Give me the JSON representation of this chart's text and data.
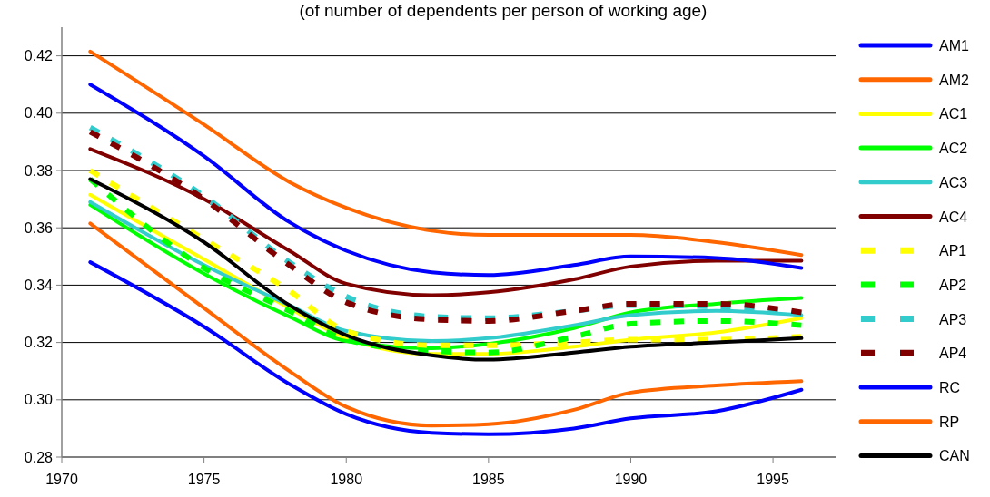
{
  "chart_data": {
    "type": "line",
    "subtitle": "(of number of dependents per person of working age)",
    "xlim": [
      1970,
      1997.2
    ],
    "xticks": [
      1970,
      1975,
      1980,
      1985,
      1990,
      1995
    ],
    "ylim": [
      0.28,
      0.43
    ],
    "yticks": [
      {
        "value": 0.28,
        "label": "0.28"
      },
      {
        "value": 0.3,
        "label": "0.30"
      },
      {
        "value": 0.32,
        "label": "0.32"
      },
      {
        "value": 0.34,
        "label": "0.34"
      },
      {
        "value": 0.36,
        "label": "0.36"
      },
      {
        "value": 0.38,
        "label": "0.38"
      },
      {
        "value": 0.4,
        "label": "0.40"
      },
      {
        "value": 0.42,
        "label": "0.42"
      }
    ],
    "grid": "y",
    "legend": "right",
    "x": [
      1971,
      1975,
      1978,
      1980,
      1983,
      1985,
      1988,
      1990,
      1993,
      1996
    ],
    "series": [
      {
        "name": "AM1",
        "color": "#0000ff",
        "line_style": "solid",
        "values": [
          0.348,
          0.3255,
          0.3055,
          0.295,
          0.2885,
          0.288,
          0.29,
          0.2935,
          0.296,
          0.3035
        ]
      },
      {
        "name": "AM2",
        "color": "#ff6600",
        "line_style": "solid",
        "values": [
          0.3615,
          0.332,
          0.31,
          0.2975,
          0.291,
          0.2915,
          0.2965,
          0.3025,
          0.305,
          0.3065
        ]
      },
      {
        "name": "AC1",
        "color": "#ffff00",
        "line_style": "solid",
        "values": [
          0.3715,
          0.349,
          0.332,
          0.3215,
          0.316,
          0.316,
          0.3185,
          0.321,
          0.3235,
          0.3285
        ]
      },
      {
        "name": "AC2",
        "color": "#00ff00",
        "line_style": "solid",
        "values": [
          0.368,
          0.344,
          0.329,
          0.3205,
          0.318,
          0.3195,
          0.325,
          0.3305,
          0.3335,
          0.3355
        ]
      },
      {
        "name": "AC3",
        "color": "#33cccc",
        "line_style": "solid",
        "values": [
          0.369,
          0.347,
          0.333,
          0.324,
          0.3205,
          0.3215,
          0.326,
          0.3295,
          0.331,
          0.3295
        ]
      },
      {
        "name": "AC4",
        "color": "#800000",
        "line_style": "solid",
        "values": [
          0.3875,
          0.37,
          0.352,
          0.3405,
          0.3365,
          0.3375,
          0.342,
          0.3465,
          0.3485,
          0.3485
        ]
      },
      {
        "name": "AP1",
        "color": "#ffff00",
        "line_style": "dashed",
        "values": [
          0.38,
          0.356,
          0.338,
          0.324,
          0.319,
          0.319,
          0.32,
          0.321,
          0.321,
          0.322
        ]
      },
      {
        "name": "AP2",
        "color": "#00ff00",
        "line_style": "dashed",
        "values": [
          0.377,
          0.346,
          0.331,
          0.321,
          0.317,
          0.3165,
          0.322,
          0.3265,
          0.3275,
          0.326
        ]
      },
      {
        "name": "AP3",
        "color": "#33cccc",
        "line_style": "dashed",
        "values": [
          0.395,
          0.371,
          0.348,
          0.336,
          0.329,
          0.3285,
          0.331,
          0.333,
          0.3325,
          0.33
        ]
      },
      {
        "name": "AP4",
        "color": "#800000",
        "line_style": "dashed",
        "values": [
          0.3935,
          0.37,
          0.347,
          0.334,
          0.328,
          0.3275,
          0.331,
          0.3335,
          0.3335,
          0.3305
        ]
      },
      {
        "name": "RC",
        "color": "#0000ff",
        "line_style": "solid",
        "values": [
          0.41,
          0.385,
          0.362,
          0.352,
          0.3445,
          0.3435,
          0.347,
          0.35,
          0.3495,
          0.346
        ]
      },
      {
        "name": "RP",
        "color": "#ff6600",
        "line_style": "solid",
        "values": [
          0.4215,
          0.396,
          0.376,
          0.367,
          0.359,
          0.3575,
          0.3575,
          0.3575,
          0.355,
          0.3505
        ]
      },
      {
        "name": "CAN",
        "color": "#000000",
        "line_style": "solid",
        "values": [
          0.377,
          0.355,
          0.333,
          0.3225,
          0.3155,
          0.314,
          0.3165,
          0.3185,
          0.32,
          0.3215
        ]
      }
    ]
  }
}
